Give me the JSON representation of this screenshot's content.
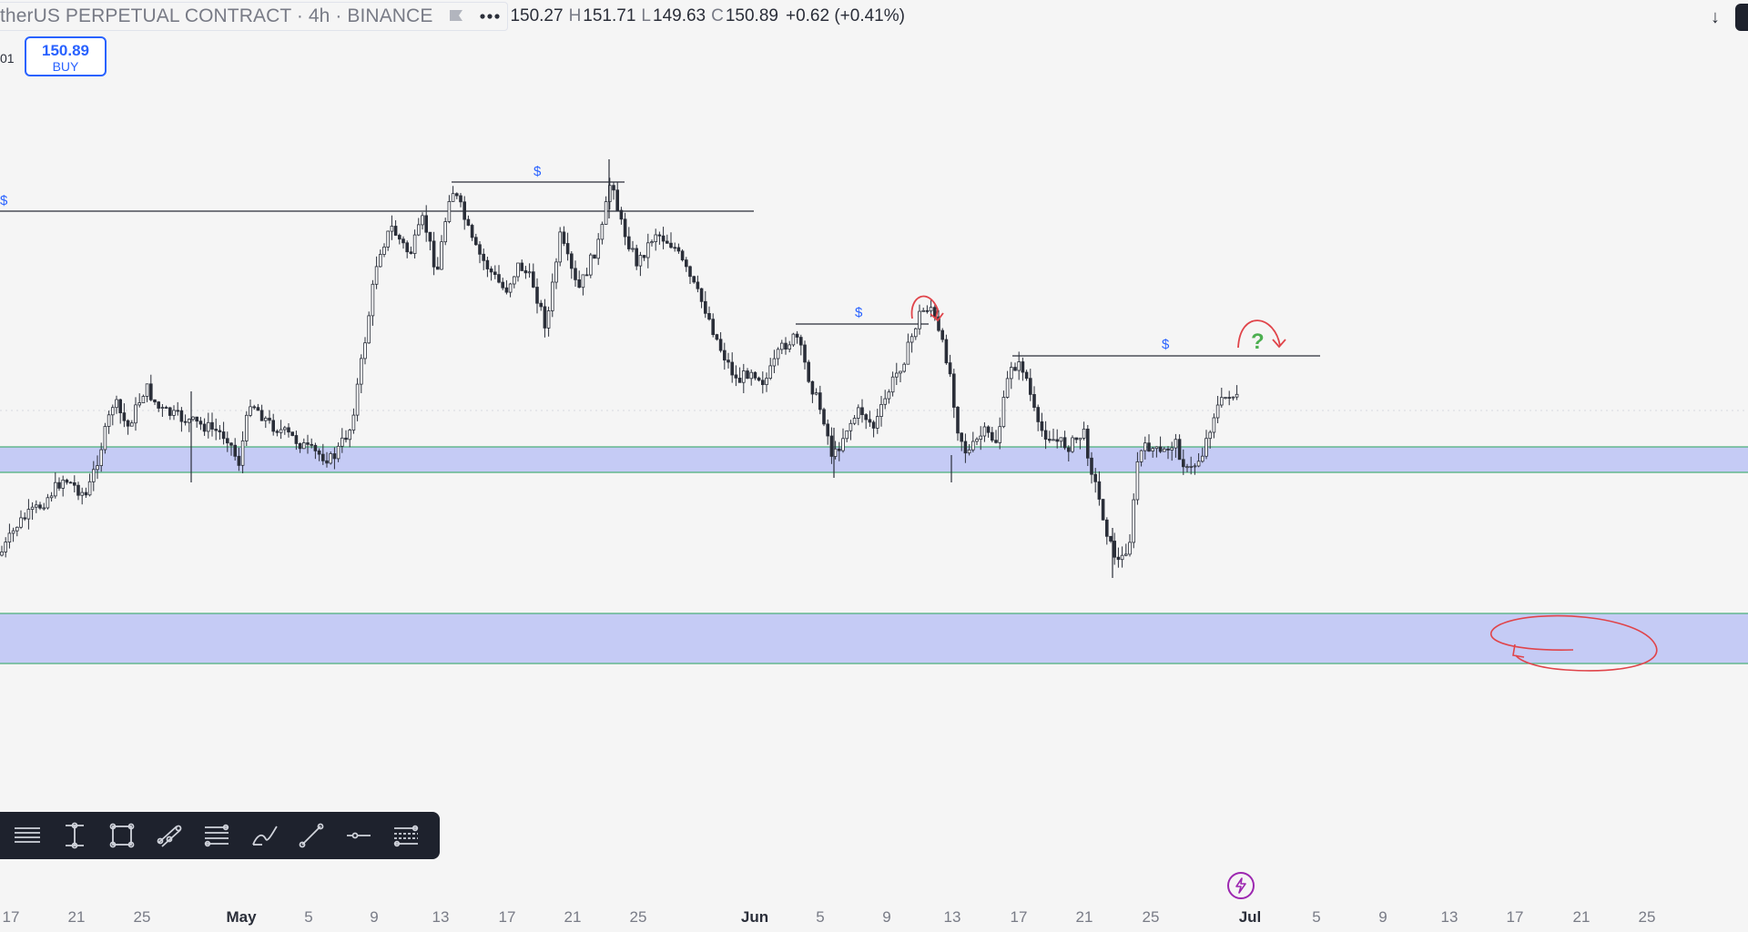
{
  "header": {
    "symbol_title": "therUS PERPETUAL CONTRACT · 4h · BINANCE",
    "ohlc": {
      "open_value": "150.27",
      "high_key": "H",
      "high_value": "151.71",
      "low_key": "L",
      "low_value": "149.63",
      "close_key": "C",
      "close_value": "150.89",
      "change": "+0.62 (+0.41%)"
    },
    "flag_icon": "flag-icon",
    "more_icon": "more-dots-icon"
  },
  "left_clip_text": "01",
  "buy_button": {
    "price": "150.89",
    "label": "BUY"
  },
  "top_right": {
    "scroll_down_icon": "arrow-down-icon",
    "glyph": "↓"
  },
  "annotations": {
    "liquidity_marker": "$",
    "question_mark": "?",
    "colors": {
      "zone_fill": "#c5cbf5",
      "zone_border": "#4caf7a",
      "liquidity_line": "#2a2e39",
      "marker_text": "#2962ff",
      "red_drawing": "#e0444a",
      "question_green": "#4caf50",
      "candle": "#2a2e39"
    }
  },
  "drawing_toolbar": {
    "tools": [
      {
        "name": "horizontal-lines-icon"
      },
      {
        "name": "vertical-range-icon"
      },
      {
        "name": "rectangle-icon"
      },
      {
        "name": "parallel-channel-icon"
      },
      {
        "name": "fib-retracement-icon"
      },
      {
        "name": "brush-icon"
      },
      {
        "name": "trend-line-icon"
      },
      {
        "name": "horizontal-ray-icon"
      },
      {
        "name": "fib-levels-icon"
      }
    ]
  },
  "time_axis": {
    "labels": [
      {
        "text": "17",
        "month": false
      },
      {
        "text": "21",
        "month": false
      },
      {
        "text": "25",
        "month": false
      },
      {
        "text": "May",
        "month": true
      },
      {
        "text": "5",
        "month": false
      },
      {
        "text": "9",
        "month": false
      },
      {
        "text": "13",
        "month": false
      },
      {
        "text": "17",
        "month": false
      },
      {
        "text": "21",
        "month": false
      },
      {
        "text": "25",
        "month": false
      },
      {
        "text": "Jun",
        "month": true
      },
      {
        "text": "5",
        "month": false
      },
      {
        "text": "9",
        "month": false
      },
      {
        "text": "13",
        "month": false
      },
      {
        "text": "17",
        "month": false
      },
      {
        "text": "21",
        "month": false
      },
      {
        "text": "25",
        "month": false
      },
      {
        "text": "Jul",
        "month": true
      },
      {
        "text": "5",
        "month": false
      },
      {
        "text": "9",
        "month": false
      },
      {
        "text": "13",
        "month": false
      },
      {
        "text": "17",
        "month": false
      },
      {
        "text": "21",
        "month": false
      },
      {
        "text": "25",
        "month": false
      }
    ]
  },
  "lightning_icon": "lightning-icon"
}
